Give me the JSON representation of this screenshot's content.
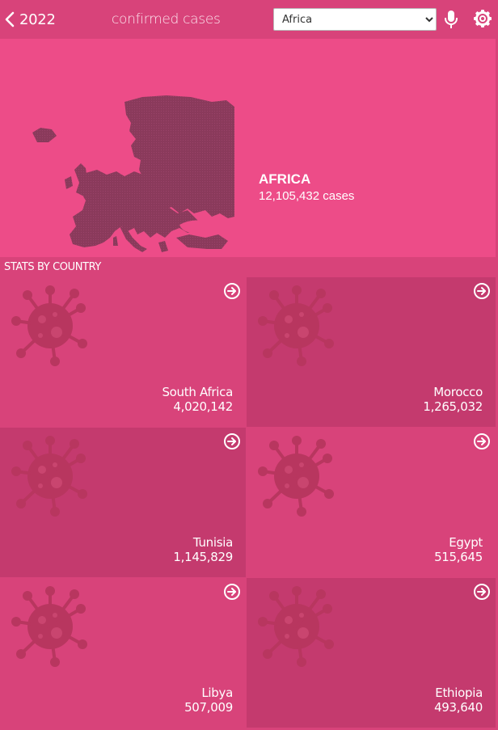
{
  "header": {
    "year": "2022",
    "title": "confirmed cases",
    "region_selected": "Africa",
    "region_options": [
      "Africa"
    ]
  },
  "hero": {
    "region_name": "AFRICA",
    "cases_text": "12,105,432 cases"
  },
  "stats": {
    "section_title": "STATS BY COUNTRY",
    "countries": [
      {
        "name": "South Africa",
        "count": "4,020,142"
      },
      {
        "name": "Morocco",
        "count": "1,265,032"
      },
      {
        "name": "Tunisia",
        "count": "1,145,829"
      },
      {
        "name": "Egypt",
        "count": "515,645"
      },
      {
        "name": "Libya",
        "count": "507,009"
      },
      {
        "name": "Ethiopia",
        "count": "493,640"
      }
    ]
  },
  "colors": {
    "background": "#d8437a",
    "hero": "#ed4c88",
    "tile_dark": "#c43a6e",
    "map": "#8c3a5c",
    "virus": "#b8365f"
  },
  "icons": [
    "chevron-left-icon",
    "microphone-icon",
    "gear-icon",
    "europe-map",
    "virus-icon",
    "arrow-circle-right-icon"
  ]
}
